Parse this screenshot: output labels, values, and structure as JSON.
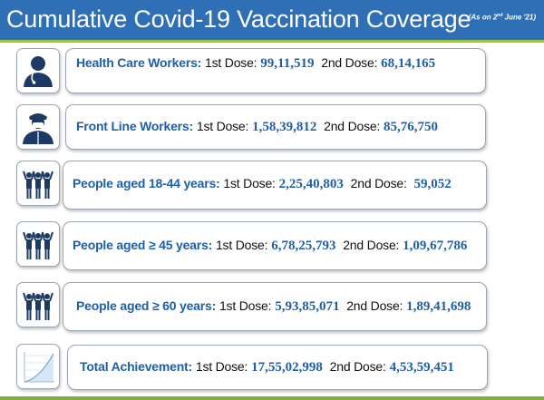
{
  "header": {
    "title": "Cumulative Covid-19 Vaccination Coverage",
    "date_prefix": "(As on 2",
    "date_sup": "nd",
    "date_suffix": " June '21)"
  },
  "rows": [
    {
      "category": "Health Care Workers:",
      "dose1_label": "1st Dose:",
      "dose1_value": "99,11,519",
      "dose2_label": "2nd Dose:",
      "dose2_value": "68,14,165",
      "icon": "health-worker-icon"
    },
    {
      "category": "Front Line Workers:",
      "dose1_label": "1st Dose:",
      "dose1_value": "1,58,39,812",
      "dose2_label": "2nd Dose:",
      "dose2_value": "85,76,750",
      "icon": "frontline-worker-icon"
    },
    {
      "category": "People aged 18-44 years:",
      "dose1_label": "1st Dose:",
      "dose1_value": "2,25,40,803",
      "dose2_label": "2nd Dose:",
      "dose2_value": "59,052",
      "icon": "people-group-icon"
    },
    {
      "category": "People aged ≥ 45 years:",
      "dose1_label": "1st Dose:",
      "dose1_value": "6,78,25,793",
      "dose2_label": "2nd Dose:",
      "dose2_value": "1,09,67,786",
      "icon": "people-group-icon"
    },
    {
      "category": "People aged ≥ 60 years:",
      "dose1_label": "1st Dose:",
      "dose1_value": "5,93,85,071",
      "dose2_label": "2nd Dose:",
      "dose2_value": "1,89,41,698",
      "icon": "people-group-icon"
    },
    {
      "category": "Total Achievement:",
      "dose1_label": "1st Dose:",
      "dose1_value": "17,55,02,998",
      "dose2_label": "2nd Dose:",
      "dose2_value": "4,53,59,451",
      "icon": "growth-chart-icon"
    }
  ],
  "colors": {
    "header": "#2e6fb5",
    "accent_green": "#9cc448",
    "value_blue": "#1f5fa8",
    "icon_navy": "#1c3a63"
  }
}
